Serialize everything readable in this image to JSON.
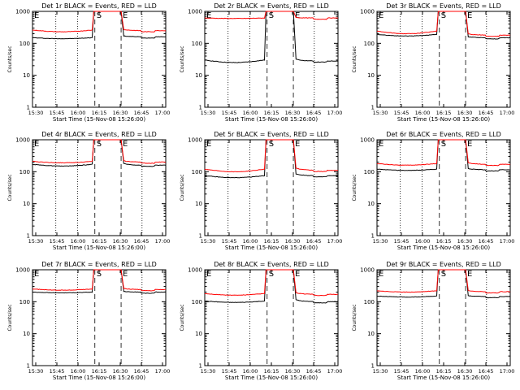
{
  "colors": {
    "events": "#000000",
    "lld": "#ff0000",
    "frame": "#000000",
    "background": "#ffffff"
  },
  "chart_data": [
    {
      "type": "line",
      "title": "Det 1r BLACK = Events, RED = LLD",
      "xlabel": "Start Time (15-Nov-08 15:26:00)",
      "ylabel": "Counts/sec",
      "x_ticks": [
        "15:30",
        "15:45",
        "16:00",
        "16:15",
        "16:30",
        "16:45",
        "17:00"
      ],
      "y_ticks": [
        "1",
        "10",
        "100",
        "1000"
      ],
      "ylim": [
        1,
        1000
      ],
      "y_scale": "log",
      "markers": [
        "E",
        "S",
        "E"
      ],
      "series": [
        {
          "pre": [
            150,
            140
          ],
          "post": [
            170,
            160
          ],
          "peak": [
            1000,
            1000
          ]
        },
        {
          "pre": [
            260,
            230
          ],
          "post": [
            270,
            250
          ],
          "peak": [
            1000,
            1000
          ]
        }
      ]
    },
    {
      "type": "line",
      "title": "Det 2r BLACK = Events, RED = LLD",
      "xlabel": "Start Time (15-Nov-08 15:26:00)",
      "ylabel": "Counts/sec",
      "x_ticks": [
        "15:30",
        "15:45",
        "16:00",
        "16:15",
        "16:30",
        "16:45",
        "17:00"
      ],
      "y_ticks": [
        "1",
        "10",
        "100",
        "1000"
      ],
      "ylim": [
        1,
        1000
      ],
      "y_scale": "log",
      "markers": [
        "E",
        "S",
        "E"
      ],
      "series": [
        {
          "pre": [
            30,
            25
          ],
          "post": [
            32,
            28
          ],
          "peak": [
            1000,
            1000
          ]
        },
        {
          "pre": [
            620,
            600
          ],
          "post": [
            640,
            620
          ],
          "peak": [
            1000,
            1000
          ]
        }
      ]
    },
    {
      "type": "line",
      "title": "Det 3r BLACK = Events, RED = LLD",
      "xlabel": "Start Time (15-Nov-08 15:26:00)",
      "ylabel": "Counts/sec",
      "x_ticks": [
        "15:30",
        "15:45",
        "16:00",
        "16:15",
        "16:30",
        "16:45",
        "17:00"
      ],
      "y_ticks": [
        "1",
        "10",
        "100",
        "1000"
      ],
      "ylim": [
        1,
        1000
      ],
      "y_scale": "log",
      "markers": [
        "E",
        "S",
        "E"
      ],
      "series": [
        {
          "pre": [
            190,
            170
          ],
          "post": [
            160,
            150
          ],
          "peak": [
            1000,
            1000
          ]
        },
        {
          "pre": [
            240,
            200
          ],
          "post": [
            200,
            180
          ],
          "peak": [
            1000,
            1000
          ]
        }
      ]
    },
    {
      "type": "line",
      "title": "Det 4r BLACK = Events, RED = LLD",
      "xlabel": "Start Time (15-Nov-08 15:26:00)",
      "ylabel": "Counts/sec",
      "x_ticks": [
        "15:30",
        "15:45",
        "16:00",
        "16:15",
        "16:30",
        "16:45",
        "17:00"
      ],
      "y_ticks": [
        "1",
        "10",
        "100",
        "1000"
      ],
      "ylim": [
        1,
        1000
      ],
      "y_scale": "log",
      "markers": [
        "E",
        "S",
        "E"
      ],
      "series": [
        {
          "pre": [
            170,
            150
          ],
          "post": [
            180,
            160
          ],
          "peak": [
            1000,
            1000
          ]
        },
        {
          "pre": [
            210,
            190
          ],
          "post": [
            220,
            200
          ],
          "peak": [
            1000,
            1000
          ]
        }
      ]
    },
    {
      "type": "line",
      "title": "Det 5r BLACK = Events, RED = LLD",
      "xlabel": "Start Time (15-Nov-08 15:26:00)",
      "ylabel": "Counts/sec",
      "x_ticks": [
        "15:30",
        "15:45",
        "16:00",
        "16:15",
        "16:30",
        "16:45",
        "17:00"
      ],
      "y_ticks": [
        "1",
        "10",
        "100",
        "1000"
      ],
      "ylim": [
        1,
        1000
      ],
      "y_scale": "log",
      "markers": [
        "E",
        "S",
        "E"
      ],
      "series": [
        {
          "pre": [
            75,
            65
          ],
          "post": [
            85,
            75
          ],
          "peak": [
            1000,
            1000
          ]
        },
        {
          "pre": [
            120,
            100
          ],
          "post": [
            130,
            110
          ],
          "peak": [
            1000,
            1000
          ]
        }
      ]
    },
    {
      "type": "line",
      "title": "Det 6r BLACK = Events, RED = LLD",
      "xlabel": "Start Time (15-Nov-08 15:26:00)",
      "ylabel": "Counts/sec",
      "x_ticks": [
        "15:30",
        "15:45",
        "16:00",
        "16:15",
        "16:30",
        "16:45",
        "17:00"
      ],
      "y_ticks": [
        "1",
        "10",
        "100",
        "1000"
      ],
      "ylim": [
        1,
        1000
      ],
      "y_scale": "log",
      "markers": [
        "E",
        "S",
        "E"
      ],
      "series": [
        {
          "pre": [
            120,
            110
          ],
          "post": [
            125,
            115
          ],
          "peak": [
            1000,
            1000
          ]
        },
        {
          "pre": [
            180,
            160
          ],
          "post": [
            190,
            170
          ],
          "peak": [
            1000,
            1000
          ]
        }
      ]
    },
    {
      "type": "line",
      "title": "Det 7r BLACK = Events, RED = LLD",
      "xlabel": "Start Time (15-Nov-08 15:26:00)",
      "ylabel": "Counts/sec",
      "x_ticks": [
        "15:30",
        "15:45",
        "16:00",
        "16:15",
        "16:30",
        "16:45",
        "17:00"
      ],
      "y_ticks": [
        "1",
        "10",
        "100",
        "1000"
      ],
      "ylim": [
        1,
        1000
      ],
      "y_scale": "log",
      "markers": [
        "E",
        "S",
        "E"
      ],
      "series": [
        {
          "pre": [
            200,
            190
          ],
          "post": [
            210,
            200
          ],
          "peak": [
            1000,
            1000
          ]
        },
        {
          "pre": [
            250,
            230
          ],
          "post": [
            260,
            240
          ],
          "peak": [
            1000,
            1000
          ]
        }
      ]
    },
    {
      "type": "line",
      "title": "Det 8r BLACK = Events, RED = LLD",
      "xlabel": "Start Time (15-Nov-08 15:26:00)",
      "ylabel": "Counts/sec",
      "x_ticks": [
        "15:30",
        "15:45",
        "16:00",
        "16:15",
        "16:30",
        "16:45",
        "17:00"
      ],
      "y_ticks": [
        "1",
        "10",
        "100",
        "1000"
      ],
      "ylim": [
        1,
        1000
      ],
      "y_scale": "log",
      "markers": [
        "E",
        "S",
        "E"
      ],
      "series": [
        {
          "pre": [
            105,
            95
          ],
          "post": [
            115,
            100
          ],
          "peak": [
            1000,
            1000
          ]
        },
        {
          "pre": [
            180,
            160
          ],
          "post": [
            190,
            170
          ],
          "peak": [
            1000,
            1000
          ]
        }
      ]
    },
    {
      "type": "line",
      "title": "Det 9r BLACK = Events, RED = LLD",
      "xlabel": "Start Time (15-Nov-08 15:26:00)",
      "ylabel": "Counts/sec",
      "x_ticks": [
        "15:30",
        "15:45",
        "16:00",
        "16:15",
        "16:30",
        "16:45",
        "17:00"
      ],
      "y_ticks": [
        "1",
        "10",
        "100",
        "1000"
      ],
      "ylim": [
        1,
        1000
      ],
      "y_scale": "log",
      "markers": [
        "E",
        "S",
        "E"
      ],
      "series": [
        {
          "pre": [
            150,
            140
          ],
          "post": [
            155,
            145
          ],
          "peak": [
            1000,
            1000
          ]
        },
        {
          "pre": [
            220,
            200
          ],
          "post": [
            225,
            205
          ],
          "peak": [
            1000,
            1000
          ]
        }
      ]
    }
  ]
}
